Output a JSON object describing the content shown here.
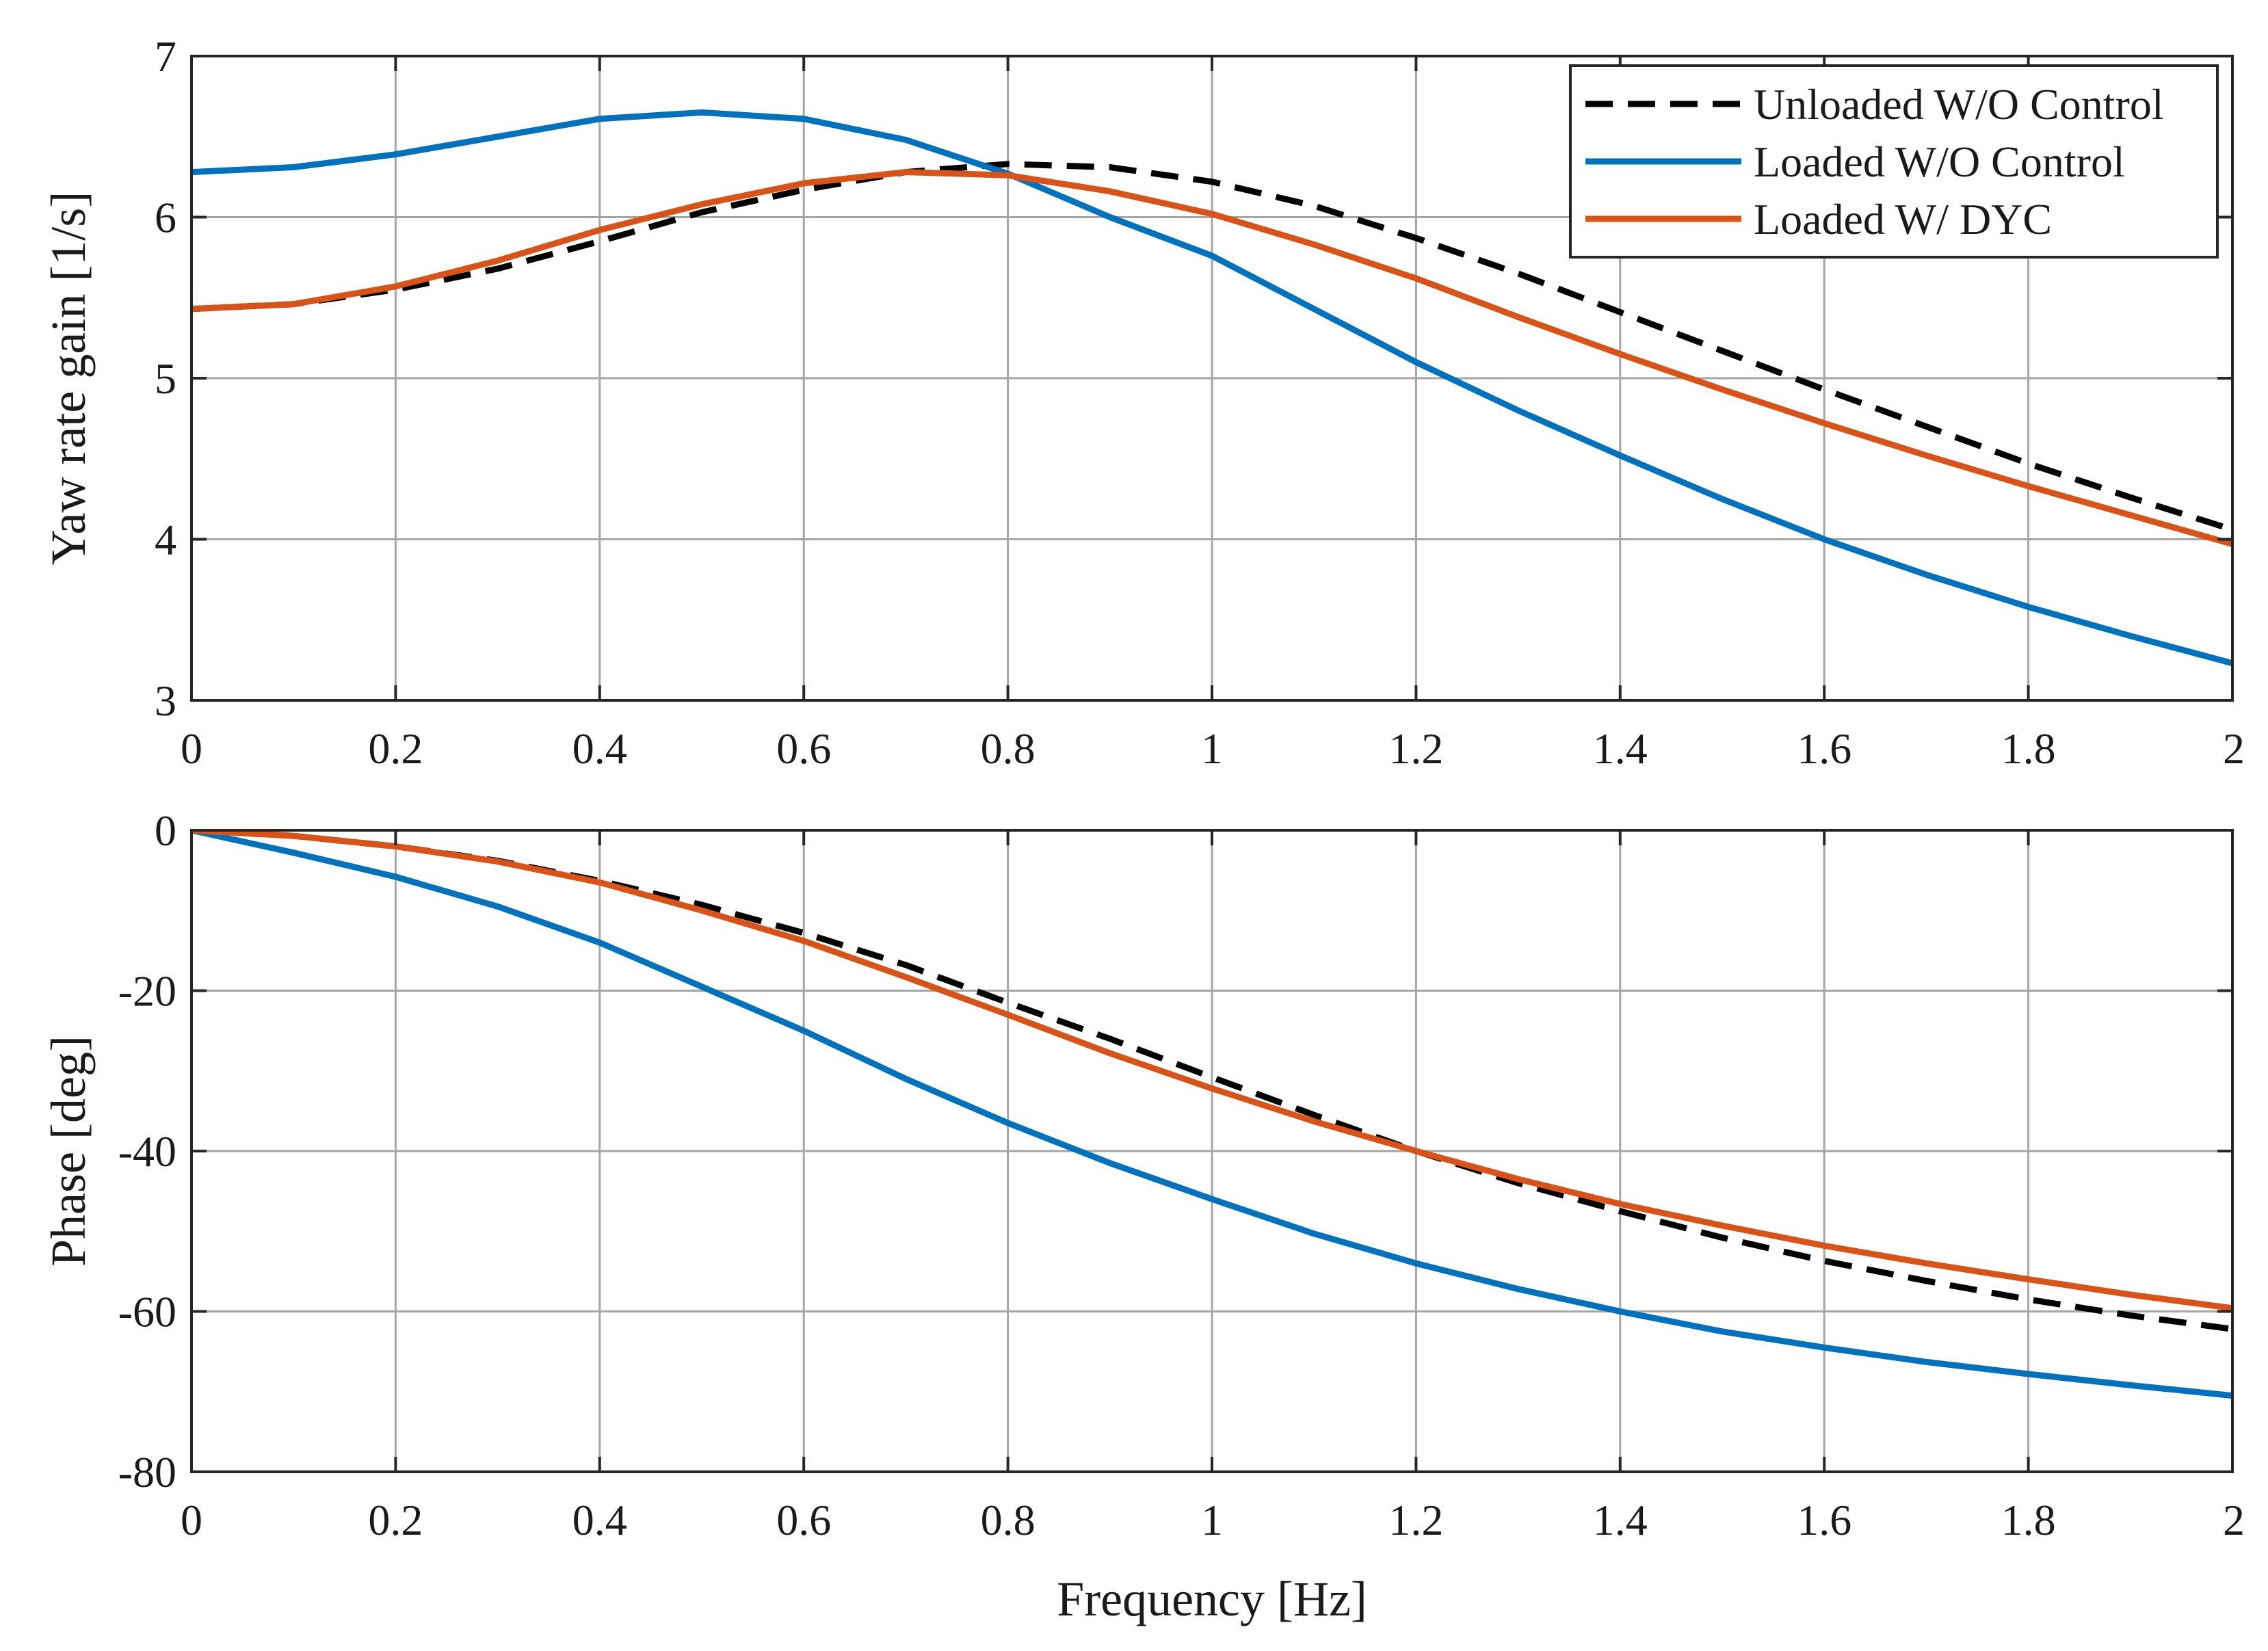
{
  "chart_data": [
    {
      "type": "line",
      "title": "",
      "xlabel": "",
      "ylabel": "Yaw rate gain [1/s]",
      "xlim": [
        0,
        2
      ],
      "ylim": [
        3,
        7
      ],
      "xticks": [
        0,
        0.2,
        0.4,
        0.6,
        0.8,
        1,
        1.2,
        1.4,
        1.6,
        1.8,
        2
      ],
      "yticks": [
        3,
        4,
        5,
        6,
        7
      ],
      "xtick_labels": [
        "0",
        "0.2",
        "0.4",
        "0.6",
        "0.8",
        "1",
        "1.2",
        "1.4",
        "1.6",
        "1.8",
        "2"
      ],
      "ytick_labels": [
        "3",
        "4",
        "5",
        "6",
        "7"
      ],
      "grid": true,
      "legend": {
        "placement": "top-right"
      },
      "x": [
        0,
        0.1,
        0.2,
        0.3,
        0.4,
        0.5,
        0.6,
        0.7,
        0.8,
        0.9,
        1.0,
        1.1,
        1.2,
        1.3,
        1.4,
        1.5,
        1.6,
        1.7,
        1.8,
        1.9,
        2.0
      ],
      "series": [
        {
          "name": "Unloaded W/O Control",
          "color": "#000000",
          "dash": "dashed",
          "values": [
            5.43,
            5.46,
            5.55,
            5.68,
            5.85,
            6.03,
            6.17,
            6.28,
            6.33,
            6.31,
            6.22,
            6.07,
            5.87,
            5.65,
            5.41,
            5.17,
            4.93,
            4.7,
            4.47,
            4.26,
            4.06
          ]
        },
        {
          "name": "Loaded W/O Control",
          "color": "#0072BD",
          "dash": "solid",
          "values": [
            6.28,
            6.31,
            6.39,
            6.5,
            6.61,
            6.65,
            6.61,
            6.48,
            6.27,
            6.0,
            5.76,
            5.43,
            5.1,
            4.8,
            4.52,
            4.25,
            4.0,
            3.78,
            3.58,
            3.4,
            3.23
          ]
        },
        {
          "name": "Loaded W/ DYC",
          "color": "#D95319",
          "dash": "solid",
          "values": [
            5.43,
            5.46,
            5.57,
            5.73,
            5.92,
            6.08,
            6.21,
            6.28,
            6.26,
            6.16,
            6.02,
            5.83,
            5.62,
            5.38,
            5.15,
            4.93,
            4.72,
            4.52,
            4.33,
            4.15,
            3.97
          ]
        }
      ]
    },
    {
      "type": "line",
      "title": "",
      "xlabel": "Frequency [Hz]",
      "ylabel": "Phase [deg]",
      "xlim": [
        0,
        2
      ],
      "ylim": [
        -80,
        0
      ],
      "xticks": [
        0,
        0.2,
        0.4,
        0.6,
        0.8,
        1,
        1.2,
        1.4,
        1.6,
        1.8,
        2
      ],
      "yticks": [
        -80,
        -60,
        -40,
        -20,
        0
      ],
      "xtick_labels": [
        "0",
        "0.2",
        "0.4",
        "0.6",
        "0.8",
        "1",
        "1.2",
        "1.4",
        "1.6",
        "1.8",
        "2"
      ],
      "ytick_labels": [
        "-80",
        "-60",
        "-40",
        "-20",
        "0"
      ],
      "grid": true,
      "x": [
        0,
        0.1,
        0.2,
        0.3,
        0.4,
        0.5,
        0.6,
        0.7,
        0.8,
        0.9,
        1.0,
        1.1,
        1.2,
        1.3,
        1.4,
        1.5,
        1.6,
        1.7,
        1.8,
        1.9,
        2.0
      ],
      "series": [
        {
          "name": "Unloaded W/O Control",
          "color": "#000000",
          "dash": "dashed",
          "values": [
            0,
            -0.7,
            -2.0,
            -3.8,
            -6.3,
            -9.3,
            -12.8,
            -16.8,
            -21.5,
            -26.0,
            -30.8,
            -35.5,
            -40.0,
            -44.0,
            -47.5,
            -50.8,
            -53.7,
            -56.2,
            -58.5,
            -60.5,
            -62.2
          ]
        },
        {
          "name": "Loaded W/O Control",
          "color": "#0072BD",
          "dash": "solid",
          "values": [
            0,
            -2.8,
            -5.8,
            -9.5,
            -14.0,
            -19.5,
            -25.0,
            -31.0,
            -36.5,
            -41.5,
            -46.0,
            -50.3,
            -54.0,
            -57.2,
            -60.0,
            -62.5,
            -64.5,
            -66.3,
            -67.8,
            -69.2,
            -70.5
          ]
        },
        {
          "name": "Loaded W/ DYC",
          "color": "#D95319",
          "dash": "solid",
          "values": [
            0,
            -0.7,
            -2.0,
            -3.9,
            -6.5,
            -10.0,
            -13.8,
            -18.3,
            -23.0,
            -27.8,
            -32.2,
            -36.3,
            -40.0,
            -43.5,
            -46.6,
            -49.3,
            -51.8,
            -54.0,
            -56.0,
            -57.9,
            -59.6
          ]
        }
      ]
    }
  ]
}
